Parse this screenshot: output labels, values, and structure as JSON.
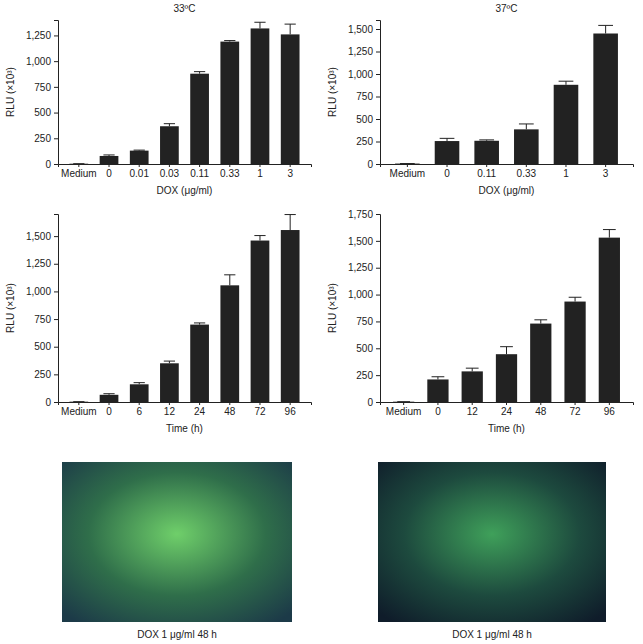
{
  "chart_data": [
    {
      "type": "bar",
      "title": "33ºC",
      "x_label": "DOX (μg/ml)",
      "y_label": "RLU (×10³)",
      "categories": [
        "Medium",
        "0",
        "0.01",
        "0.03",
        "0.11",
        "0.33",
        "1",
        "3"
      ],
      "values": [
        3,
        78,
        130,
        367,
        878,
        1190,
        1318,
        1260
      ],
      "errors": [
        0,
        10,
        5,
        25,
        20,
        10,
        60,
        100
      ],
      "color": "#222222",
      "ylim": [
        0,
        1400
      ],
      "yticks": [
        0,
        250,
        500,
        750,
        {
          "value": 1000,
          "label": "1,000"
        },
        {
          "value": 1250,
          "label": "1,250"
        }
      ],
      "grid": false
    },
    {
      "type": "bar",
      "title": "37ºC",
      "x_label": "DOX (μg/ml)",
      "y_label": "RLU (×10³)",
      "categories": [
        "Medium",
        "0",
        "0.11",
        "0.33",
        "1",
        "3"
      ],
      "values": [
        5,
        255,
        258,
        385,
        880,
        1450
      ],
      "errors": [
        0,
        30,
        10,
        60,
        40,
        90
      ],
      "color": "#222222",
      "ylim": [
        0,
        1600
      ],
      "yticks": [
        0,
        250,
        500,
        750,
        {
          "value": 1000,
          "label": "1,000"
        },
        {
          "value": 1250,
          "label": "1,250"
        },
        {
          "value": 1500,
          "label": "1,500"
        }
      ],
      "grid": false
    },
    {
      "type": "bar",
      "x_label": "Time (h)",
      "y_label": "RLU (×10³)",
      "categories": [
        "Medium",
        "0",
        "6",
        "12",
        "24",
        "48",
        "72",
        "96"
      ],
      "values": [
        3,
        65,
        160,
        350,
        700,
        1055,
        1460,
        1555
      ],
      "errors": [
        0,
        10,
        15,
        20,
        15,
        95,
        45,
        140
      ],
      "color": "#222222",
      "ylim": [
        0,
        1700
      ],
      "yticks": [
        0,
        250,
        500,
        750,
        {
          "value": 1000,
          "label": "1,000"
        },
        {
          "value": 1250,
          "label": "1,250"
        },
        {
          "value": 1500,
          "label": "1,500"
        }
      ],
      "grid": false
    },
    {
      "type": "bar",
      "x_label": "Time (h)",
      "y_label": "RLU (×10³)",
      "categories": [
        "Medium",
        "0",
        "12",
        "24",
        "48",
        "72",
        "96"
      ],
      "values": [
        3,
        210,
        285,
        445,
        730,
        935,
        1530
      ],
      "errors": [
        0,
        25,
        30,
        70,
        35,
        40,
        75
      ],
      "color": "#222222",
      "ylim": [
        0,
        1750
      ],
      "yticks": [
        0,
        250,
        500,
        750,
        {
          "value": 1000,
          "label": "1,000"
        },
        {
          "value": 1250,
          "label": "1,250"
        },
        {
          "value": 1500,
          "label": "1,500"
        },
        {
          "value": 1750,
          "label": "1,750"
        }
      ],
      "grid": false
    }
  ],
  "images": [
    {
      "caption": "DOX 1 μg/ml 48 h"
    },
    {
      "caption": "DOX 1 μg/ml 48 h"
    }
  ]
}
